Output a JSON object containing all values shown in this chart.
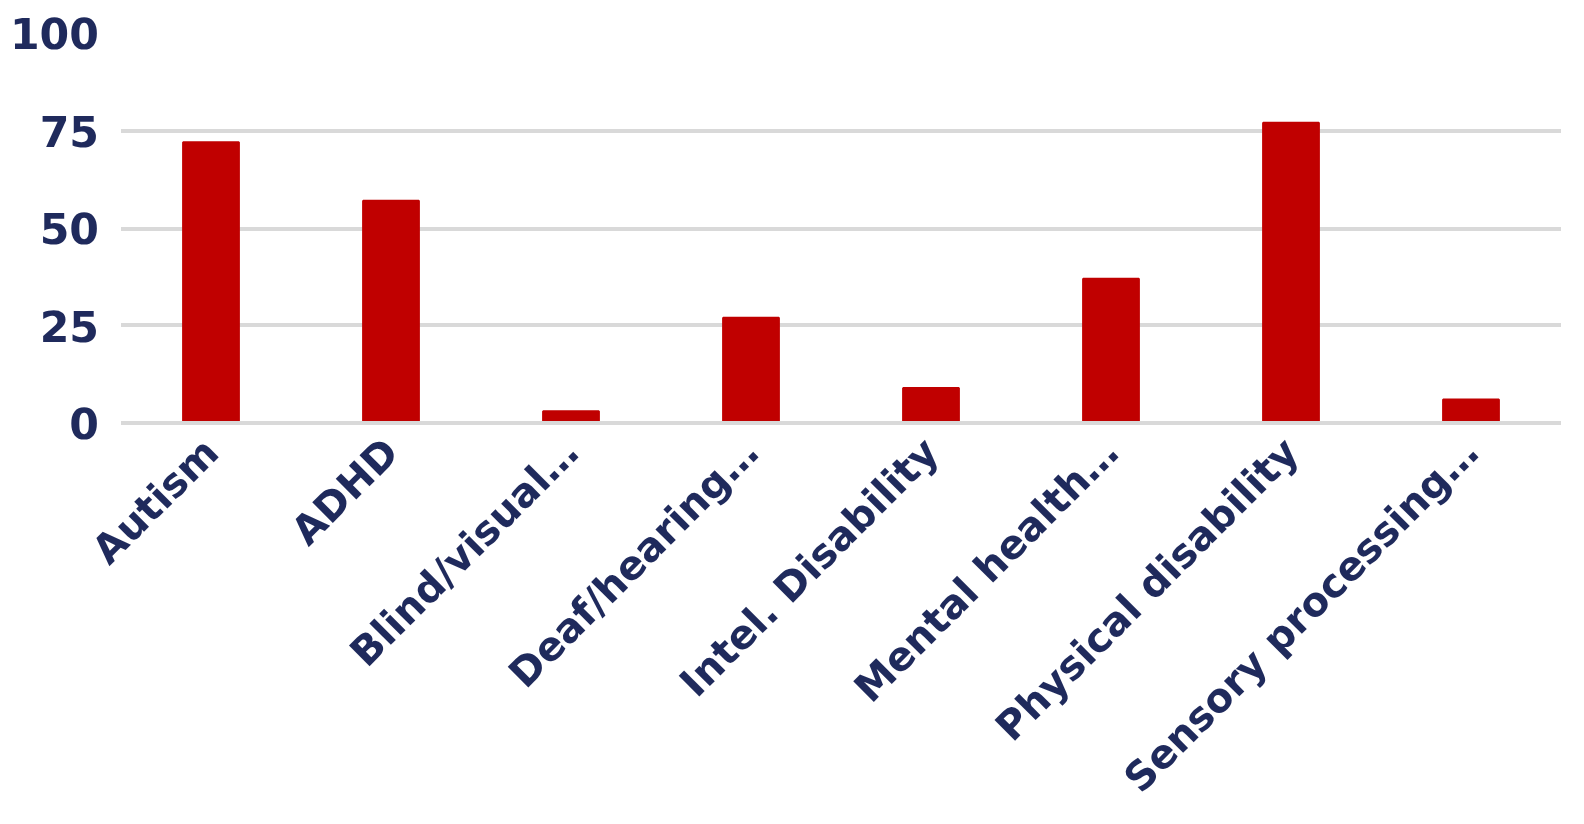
{
  "chart_data": {
    "type": "bar",
    "categories": [
      "Autism",
      "ADHD",
      "Blind/visual…",
      "Deaf/hearing…",
      "Intel. Disability",
      "Mental health…",
      "Physical disability",
      "Sensory processing…"
    ],
    "values": [
      72,
      57,
      3,
      27,
      9,
      37,
      77,
      6
    ],
    "color": "#c00000",
    "ylim": [
      0,
      100
    ],
    "yticks": [
      0,
      25,
      50,
      75,
      100
    ],
    "grid": "y"
  }
}
